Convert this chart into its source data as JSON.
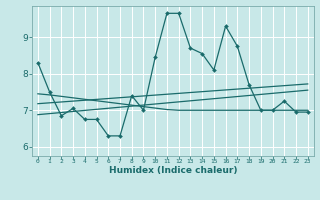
{
  "background_color": "#c8e8e8",
  "grid_color": "#ffffff",
  "line_color": "#1a6b6b",
  "xlabel": "Humidex (Indice chaleur)",
  "xlim": [
    -0.5,
    23.5
  ],
  "ylim": [
    5.75,
    9.85
  ],
  "yticks": [
    6,
    7,
    8,
    9
  ],
  "xticks": [
    0,
    1,
    2,
    3,
    4,
    5,
    6,
    7,
    8,
    9,
    10,
    11,
    12,
    13,
    14,
    15,
    16,
    17,
    18,
    19,
    20,
    21,
    22,
    23
  ],
  "line1_x": [
    0,
    1,
    2,
    3,
    4,
    5,
    6,
    7,
    8,
    9,
    10,
    11,
    12,
    13,
    14,
    15,
    16,
    17,
    18,
    19,
    20,
    21,
    22,
    23
  ],
  "line1_y": [
    8.3,
    7.5,
    6.85,
    7.05,
    6.75,
    6.75,
    6.3,
    6.3,
    7.4,
    7.0,
    8.45,
    9.65,
    9.65,
    8.7,
    8.55,
    8.1,
    9.3,
    8.75,
    7.7,
    7.0,
    7.0,
    7.25,
    6.95,
    6.95
  ],
  "line2_x": [
    0,
    1,
    2,
    3,
    4,
    5,
    6,
    7,
    8,
    9,
    10,
    11,
    12,
    13,
    14,
    15,
    16,
    17,
    18,
    19,
    20,
    21,
    22,
    23
  ],
  "line2_y": [
    7.45,
    7.42,
    7.38,
    7.34,
    7.3,
    7.26,
    7.22,
    7.18,
    7.14,
    7.1,
    7.06,
    7.02,
    7.0,
    7.0,
    7.0,
    7.0,
    7.0,
    7.0,
    7.0,
    7.0,
    7.0,
    7.0,
    7.0,
    7.0
  ],
  "line3_x": [
    0,
    23
  ],
  "line3_y": [
    6.88,
    7.55
  ],
  "line4_x": [
    0,
    23
  ],
  "line4_y": [
    7.18,
    7.72
  ]
}
